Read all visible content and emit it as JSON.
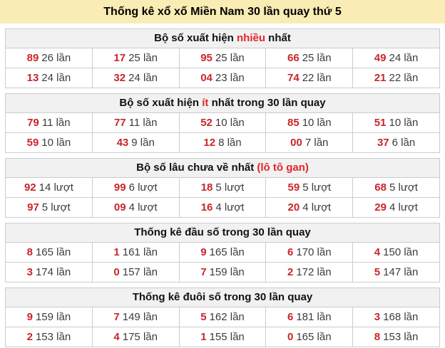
{
  "title": "Thống kê xổ xố Miền Nam 30 lần quay thứ 5",
  "colors": {
    "title_bg": "#F9ECB4",
    "section_header_bg": "#F1F1F1",
    "border": "#CCCCCC",
    "number_red": "#C9252B",
    "highlight_red": "#E2262C",
    "count_text": "#3C3C3C"
  },
  "sections": [
    {
      "id": "most-frequent",
      "header_prefix": "Bộ số xuất hiện ",
      "header_highlight": "nhiều",
      "header_suffix": " nhất",
      "rows": [
        {
          "cells": [
            {
              "num": "89",
              "count": "26 lần"
            },
            {
              "num": "17",
              "count": "25 lần"
            },
            {
              "num": "95",
              "count": "25 lần"
            },
            {
              "num": "66",
              "count": "25 lần"
            },
            {
              "num": "49",
              "count": "24 lần"
            }
          ]
        },
        {
          "cells": [
            {
              "num": "13",
              "count": "24 lần"
            },
            {
              "num": "32",
              "count": "24 lần"
            },
            {
              "num": "04",
              "count": "23 lần"
            },
            {
              "num": "74",
              "count": "22 lần"
            },
            {
              "num": "21",
              "count": "22 lần"
            }
          ]
        }
      ]
    },
    {
      "id": "least-frequent",
      "header_prefix": "Bộ số xuất hiện ",
      "header_highlight": "ít",
      "header_suffix": " nhất trong 30 lần quay",
      "rows": [
        {
          "cells": [
            {
              "num": "79",
              "count": "11 lần"
            },
            {
              "num": "77",
              "count": "11 lần"
            },
            {
              "num": "52",
              "count": "10 lần"
            },
            {
              "num": "85",
              "count": "10 lần"
            },
            {
              "num": "51",
              "count": "10 lần"
            }
          ]
        },
        {
          "cells": [
            {
              "num": "59",
              "count": "10 lần"
            },
            {
              "num": "43",
              "count": "9 lần"
            },
            {
              "num": "12",
              "count": "8 lần"
            },
            {
              "num": "00",
              "count": "7 lần"
            },
            {
              "num": "37",
              "count": "6 lần"
            }
          ]
        }
      ]
    },
    {
      "id": "longest-absent",
      "header_prefix": "Bộ số lâu chưa về nhất ",
      "header_highlight": "(lô tô gan)",
      "header_suffix": "",
      "rows": [
        {
          "cells": [
            {
              "num": "92",
              "count": "14 lượt"
            },
            {
              "num": "99",
              "count": "6 lượt"
            },
            {
              "num": "18",
              "count": "5 lượt"
            },
            {
              "num": "59",
              "count": "5 lượt"
            },
            {
              "num": "68",
              "count": "5 lượt"
            }
          ]
        },
        {
          "cells": [
            {
              "num": "97",
              "count": "5 lượt"
            },
            {
              "num": "09",
              "count": "4 lượt"
            },
            {
              "num": "16",
              "count": "4 lượt"
            },
            {
              "num": "20",
              "count": "4 lượt"
            },
            {
              "num": "29",
              "count": "4 lượt"
            }
          ]
        }
      ]
    },
    {
      "id": "head-digits",
      "header_prefix": "Thống kê đầu số trong 30 lần quay",
      "header_highlight": "",
      "header_suffix": "",
      "rows": [
        {
          "cells": [
            {
              "num": "8",
              "count": "165 lần"
            },
            {
              "num": "1",
              "count": "161 lần"
            },
            {
              "num": "9",
              "count": "165 lần"
            },
            {
              "num": "6",
              "count": "170 lần"
            },
            {
              "num": "4",
              "count": "150 lần"
            }
          ]
        },
        {
          "cells": [
            {
              "num": "3",
              "count": "174 lần"
            },
            {
              "num": "0",
              "count": "157 lần"
            },
            {
              "num": "7",
              "count": "159 lần"
            },
            {
              "num": "2",
              "count": "172 lần"
            },
            {
              "num": "5",
              "count": "147 lần"
            }
          ]
        }
      ]
    },
    {
      "id": "tail-digits",
      "header_prefix": "Thống kê đuôi số trong 30 lần quay",
      "header_highlight": "",
      "header_suffix": "",
      "rows": [
        {
          "cells": [
            {
              "num": "9",
              "count": "159 lần"
            },
            {
              "num": "7",
              "count": "149 lần"
            },
            {
              "num": "5",
              "count": "162 lần"
            },
            {
              "num": "6",
              "count": "181 lần"
            },
            {
              "num": "3",
              "count": "168 lần"
            }
          ]
        },
        {
          "cells": [
            {
              "num": "2",
              "count": "153 lần"
            },
            {
              "num": "4",
              "count": "175 lần"
            },
            {
              "num": "1",
              "count": "155 lần"
            },
            {
              "num": "0",
              "count": "165 lần"
            },
            {
              "num": "8",
              "count": "153 lần"
            }
          ]
        }
      ]
    }
  ]
}
